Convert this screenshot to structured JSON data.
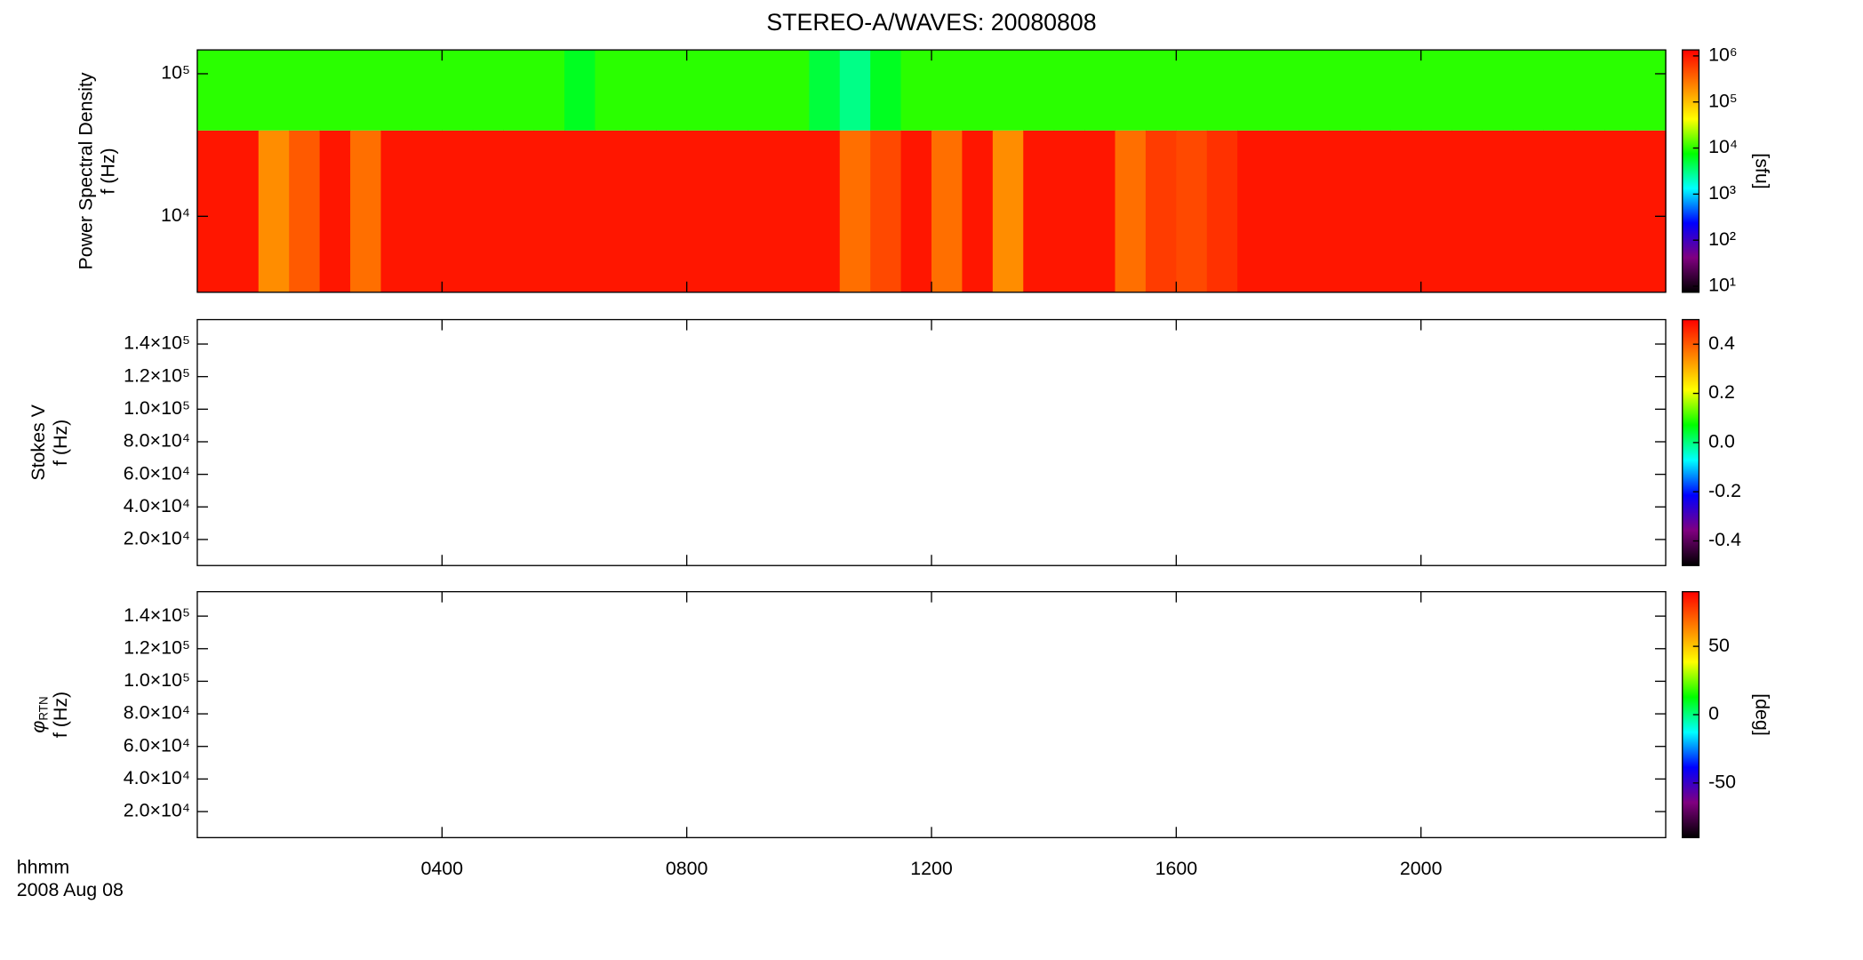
{
  "figure": {
    "title": "STEREO-A/WAVES: 20080808",
    "x_label": "hhmm",
    "date": "2008 Aug 08"
  },
  "time_axis": {
    "xlim": [
      0,
      24
    ],
    "xticks": [
      {
        "value": 4,
        "label": "0400"
      },
      {
        "value": 8,
        "label": "0800"
      },
      {
        "value": 12,
        "label": "1200"
      },
      {
        "value": 16,
        "label": "1600"
      },
      {
        "value": 20,
        "label": "2000"
      }
    ]
  },
  "colormap": [
    "#000000",
    "#800080",
    "#0000ff",
    "#00ffff",
    "#00ff00",
    "#ffff00",
    "#ff8000",
    "#ff0000"
  ],
  "chart_data": [
    {
      "type": "heatmap",
      "ylabel": "Power Spectral Density",
      "ylabel2": "f (Hz)",
      "yscale": "log",
      "ylim": [
        2930,
        147000
      ],
      "yticks": [
        {
          "value": 10000,
          "label": "10⁴"
        },
        {
          "value": 100000,
          "label": "10⁵"
        }
      ],
      "bins": [
        0,
        0.5,
        1,
        1.5,
        2,
        2.5,
        3,
        3.5,
        4,
        4.5,
        5,
        5.5,
        6,
        6.5,
        7,
        7.5,
        8,
        8.5,
        9,
        9.5,
        10,
        10.5,
        11,
        11.5,
        12,
        12.5,
        13,
        13.5,
        14,
        14.5,
        15,
        15.5,
        16,
        16.5,
        17,
        17.5,
        18,
        18.5,
        19,
        19.5,
        20,
        20.5,
        21,
        21.5,
        22,
        22.5,
        23,
        23.5,
        24
      ],
      "y_bins": [
        2930,
        40000,
        147000
      ],
      "values": [
        [
          1000000,
          1000000,
          200000,
          400000,
          1000000,
          300000,
          1000000,
          1000000,
          1000000,
          1000000,
          1000000,
          1000000,
          1000000,
          1000000,
          1000000,
          1000000,
          1000000,
          1000000,
          1000000,
          1000000,
          1000000,
          300000,
          500000,
          1000000,
          300000,
          1000000,
          200000,
          1000000,
          1000000,
          1000000,
          300000,
          600000,
          500000,
          700000,
          1000000,
          1000000,
          1000000,
          1000000,
          1000000,
          1000000,
          1000000,
          1000000,
          1000000,
          1000000,
          1000000,
          1000000,
          1000000,
          1000000
        ],
        [
          10000,
          10000,
          10000,
          10000,
          10000,
          10000,
          10000,
          10000,
          10000,
          10000,
          10000,
          10000,
          6000,
          10000,
          10000,
          10000,
          10000,
          10000,
          10000,
          10000,
          5000,
          3000,
          6000,
          10000,
          10000,
          10000,
          10000,
          10000,
          10000,
          10000,
          10000,
          10000,
          10000,
          10000,
          10000,
          10000,
          10000,
          10000,
          10000,
          10000,
          10000,
          10000,
          10000,
          10000,
          10000,
          10000,
          10000,
          10000
        ]
      ],
      "colorbar": {
        "label": "[sfu]",
        "scale": "log",
        "lim": [
          7.4,
          1350000
        ],
        "ticks": [
          {
            "value": 10,
            "label": "10¹"
          },
          {
            "value": 100,
            "label": "10²"
          },
          {
            "value": 1000,
            "label": "10³"
          },
          {
            "value": 10000,
            "label": "10⁴"
          },
          {
            "value": 100000,
            "label": "10⁵"
          },
          {
            "value": 1000000,
            "label": "10⁶"
          }
        ]
      }
    },
    {
      "type": "heatmap",
      "ylabel": "Stokes V",
      "ylabel2": "f (Hz)",
      "yscale": "linear",
      "ylim": [
        4000,
        155000
      ],
      "yticks": [
        {
          "value": 20000,
          "label": "2.0×10⁴"
        },
        {
          "value": 40000,
          "label": "4.0×10⁴"
        },
        {
          "value": 60000,
          "label": "6.0×10⁴"
        },
        {
          "value": 80000,
          "label": "8.0×10⁴"
        },
        {
          "value": 100000,
          "label": "1.0×10⁵"
        },
        {
          "value": 120000,
          "label": "1.2×10⁵"
        },
        {
          "value": 140000,
          "label": "1.4×10⁵"
        }
      ],
      "colorbar": {
        "scale": "linear",
        "lim": [
          -0.5,
          0.5
        ],
        "ticks": [
          -0.4,
          -0.2,
          {
            "value": 0,
            "label": "0.0"
          },
          0.2,
          0.4
        ]
      }
    },
    {
      "type": "heatmap",
      "ylabel": "φ",
      "ylabel_sub": "RTN",
      "ylabel2": "f (Hz)",
      "yscale": "linear",
      "ylim": [
        4000,
        155000
      ],
      "yticks": [
        {
          "value": 20000,
          "label": "2.0×10⁴"
        },
        {
          "value": 40000,
          "label": "4.0×10⁴"
        },
        {
          "value": 60000,
          "label": "6.0×10⁴"
        },
        {
          "value": 80000,
          "label": "8.0×10⁴"
        },
        {
          "value": 100000,
          "label": "1.0×10⁵"
        },
        {
          "value": 120000,
          "label": "1.2×10⁵"
        },
        {
          "value": 140000,
          "label": "1.4×10⁵"
        }
      ],
      "colorbar": {
        "label": "[deg]",
        "scale": "linear",
        "lim": [
          -90,
          90
        ],
        "ticks": [
          -50,
          0,
          50
        ]
      }
    }
  ]
}
